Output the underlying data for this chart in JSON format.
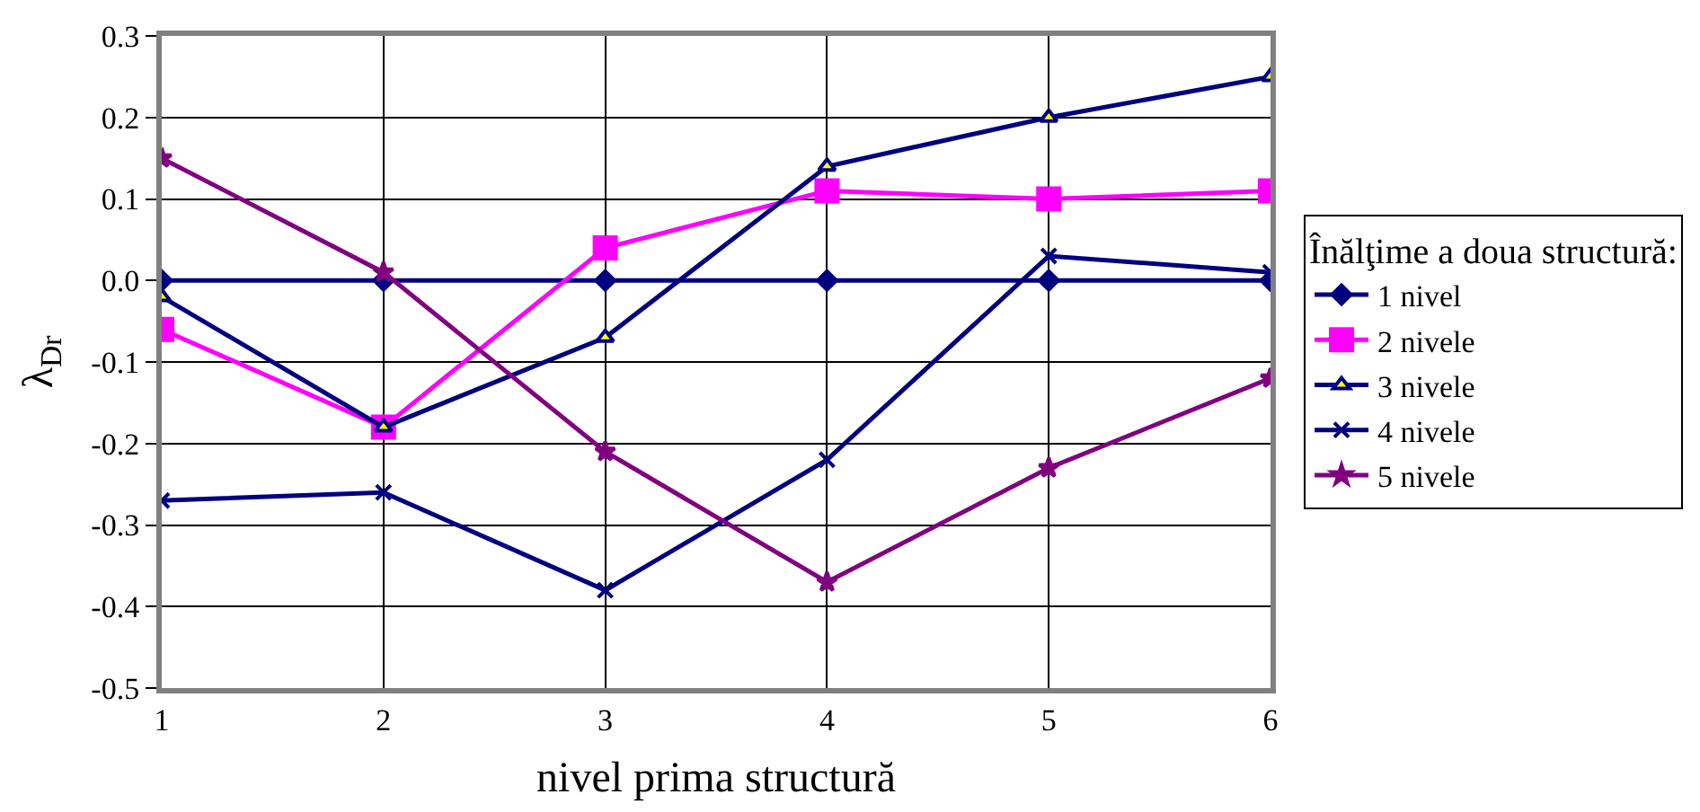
{
  "chart_data": {
    "type": "line",
    "xlabel": "nivel prima structură",
    "ylabel": "λ$_{Dr}$",
    "legend_title": "Înălţime a doua structură:",
    "x": [
      1,
      2,
      3,
      4,
      5,
      6
    ],
    "xlim": [
      1,
      6
    ],
    "xticks": [
      1,
      2,
      3,
      4,
      5,
      6
    ],
    "ylim": [
      -0.5,
      0.3
    ],
    "yticks": [
      {
        "value": -0.5,
        "label": "-0.5"
      },
      {
        "value": -0.4,
        "label": "-0.4"
      },
      {
        "value": -0.3,
        "label": "-0.3"
      },
      {
        "value": -0.2,
        "label": "-0.2"
      },
      {
        "value": -0.1,
        "label": "-0.1"
      },
      {
        "value": 0,
        "label": "0.0"
      },
      {
        "value": 0.1,
        "label": "0.1"
      },
      {
        "value": 0.2,
        "label": "0.2"
      },
      {
        "value": 0.3,
        "label": "0.3"
      }
    ],
    "grid": true,
    "legend": "right",
    "line_style": "solid",
    "series": [
      {
        "name": "1 nivel",
        "color": "#000080",
        "marker": "diamond",
        "values": [
          0,
          0,
          0,
          0,
          0,
          0
        ]
      },
      {
        "name": "2 nivele",
        "color": "#ff00ff",
        "marker": "square",
        "values": [
          -0.06,
          -0.18,
          0.04,
          0.11,
          0.1,
          0.11
        ]
      },
      {
        "name": "3 nivele",
        "color": "#000080",
        "marker": "triangle",
        "values": [
          -0.02,
          -0.18,
          -0.07,
          0.14,
          0.2,
          0.25
        ]
      },
      {
        "name": "4 nivele",
        "color": "#000080",
        "marker": "cross",
        "values": [
          -0.27,
          -0.26,
          -0.38,
          -0.22,
          0.03,
          0.01
        ]
      },
      {
        "name": "5 nivele",
        "color": "#800080",
        "marker": "star",
        "values": [
          0.15,
          0.01,
          -0.21,
          -0.37,
          -0.23,
          -0.12
        ]
      }
    ]
  }
}
